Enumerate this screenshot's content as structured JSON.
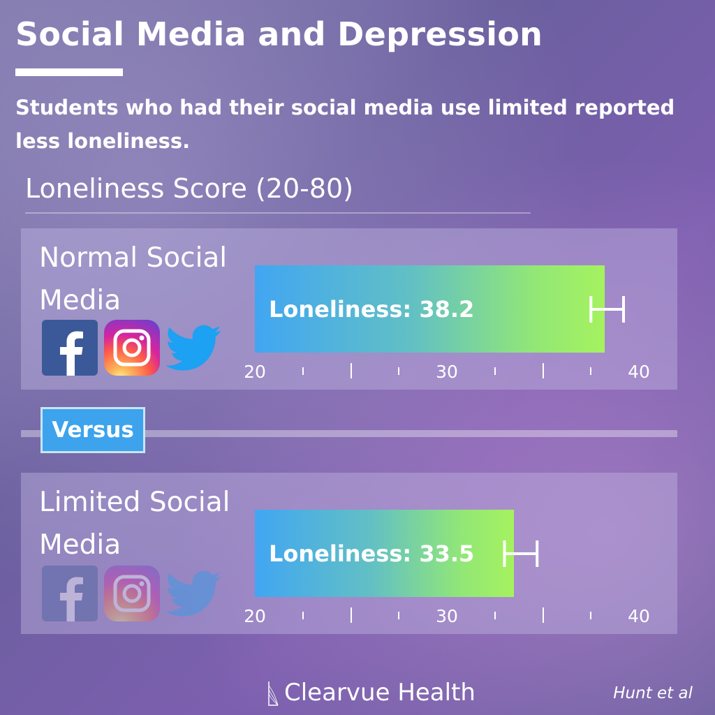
{
  "title": "Social Media and Depression",
  "subtitle": "Students who had their social media use limited reported less loneliness.",
  "score_title": "Loneliness Score (20-80)",
  "versus_label": "Versus",
  "brand": "Clearvue Health",
  "citation": "Hunt et al",
  "icons": [
    {
      "name": "facebook-icon",
      "color": "#3b5998"
    },
    {
      "name": "instagram-icon",
      "color": "#c13584"
    },
    {
      "name": "twitter-icon",
      "color": "#1da1f2"
    }
  ],
  "chart_data": {
    "type": "bar",
    "orientation": "horizontal",
    "xlim": [
      20,
      40
    ],
    "tick_labels": [
      "20",
      "30",
      "40"
    ],
    "major_ticks": [
      25,
      35
    ],
    "minor_ticks": [
      22.5,
      27.5,
      32.5,
      37.5
    ],
    "categories": [
      "Normal Social Media",
      "Limited Social Media"
    ],
    "series": [
      {
        "values": [
          38.2,
          33.5
        ],
        "labels": [
          "Loneliness: 38.2",
          "Loneliness: 33.5"
        ],
        "error_low": [
          37.5,
          33.0
        ],
        "error_high": [
          39.2,
          34.7
        ]
      }
    ]
  }
}
